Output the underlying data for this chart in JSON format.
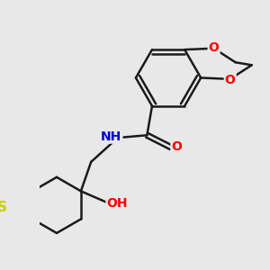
{
  "background_color": "#e8e8e8",
  "bond_color": "#1a1a1a",
  "atom_colors": {
    "O": "#ff0000",
    "N": "#0000cc",
    "S": "#cccc00",
    "C": "#1a1a1a"
  },
  "line_width": 1.8
}
